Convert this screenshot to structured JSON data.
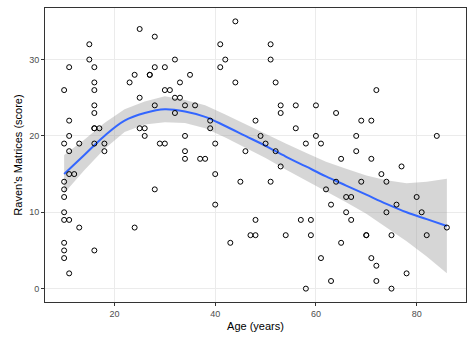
{
  "chart_data": {
    "type": "scatter",
    "x_label": "Age (years)",
    "y_label": "Raven's Matrices (score)",
    "x": [
      10,
      10,
      10,
      10,
      10,
      10,
      10,
      10,
      10,
      10,
      11,
      11,
      11,
      11,
      11,
      11,
      12,
      11,
      13,
      13,
      15,
      15,
      16,
      16,
      16,
      16,
      16,
      16,
      16,
      16,
      16,
      17,
      18,
      18,
      23,
      24,
      24,
      25,
      25,
      25,
      26,
      26,
      27,
      27,
      28,
      28,
      28,
      28,
      29,
      30,
      30,
      30,
      31,
      32,
      32,
      32,
      33,
      33,
      34,
      34,
      34,
      34,
      35,
      36,
      37,
      38,
      39,
      39,
      40,
      40,
      40,
      41,
      41,
      42,
      43,
      44,
      44,
      45,
      46,
      47,
      48,
      48,
      48,
      49,
      50,
      51,
      51,
      51,
      52,
      52,
      53,
      53,
      53,
      54,
      56,
      56,
      57,
      58,
      58,
      59,
      59,
      60,
      60,
      61,
      61,
      62,
      63,
      63,
      64,
      64,
      65,
      65,
      66,
      66,
      67,
      67,
      68,
      68,
      69,
      69,
      70,
      70,
      71,
      71,
      71,
      72,
      72,
      72,
      73,
      74,
      74,
      75,
      75,
      76,
      77,
      78,
      80,
      81,
      82,
      84,
      86
    ],
    "values": [
      26,
      19,
      14,
      13,
      12,
      10,
      9,
      6,
      5,
      4,
      29,
      22,
      20,
      18,
      15,
      2,
      15,
      9,
      19,
      8,
      32,
      30,
      29,
      27,
      26,
      24,
      23,
      21,
      21,
      19,
      5,
      21,
      19,
      18,
      27,
      28,
      8,
      34,
      21,
      25,
      21,
      20,
      28,
      28,
      33,
      29,
      24,
      13,
      19,
      29,
      26,
      19,
      26,
      30,
      25,
      23,
      25,
      27,
      18,
      17,
      20,
      24,
      28,
      24,
      17,
      17,
      22,
      21,
      11,
      19,
      15,
      29,
      32,
      30,
      6,
      35,
      27,
      14,
      18,
      7,
      9,
      22,
      7,
      20,
      19,
      32,
      30,
      14,
      27,
      18,
      16,
      23,
      24,
      7,
      21,
      24,
      9,
      0,
      19,
      9,
      7,
      24,
      20,
      19,
      4,
      13,
      11,
      1,
      14,
      23,
      6,
      17,
      12,
      10,
      12,
      9,
      20,
      18,
      22,
      14,
      7,
      7,
      22,
      17,
      4,
      3,
      1,
      26,
      15,
      14,
      10,
      0,
      7,
      11,
      16,
      2,
      12,
      10,
      7,
      20,
      8
    ],
    "marker": "open circle",
    "fit": {
      "x": [
        10,
        14,
        18,
        22,
        26,
        30,
        34,
        38,
        42,
        46,
        50,
        54,
        58,
        62,
        66,
        70,
        74,
        78,
        82,
        86
      ],
      "values": [
        15,
        17.5,
        20,
        22,
        23,
        23.5,
        23.2,
        22.5,
        21.3,
        20,
        18.7,
        17.3,
        16,
        14.7,
        13.5,
        12.3,
        11.1,
        10,
        9.1,
        8.2
      ],
      "lower": [
        12.5,
        15.5,
        18.3,
        20.5,
        21.5,
        21.8,
        21.7,
        21,
        19.8,
        18.5,
        17.1,
        15.6,
        14.2,
        12.8,
        11.3,
        9.8,
        8,
        6.2,
        4.2,
        2
      ],
      "upper": [
        17.5,
        19.5,
        21.7,
        23.5,
        24.5,
        25.2,
        24.7,
        24,
        22.8,
        21.5,
        20.3,
        19,
        17.8,
        16.6,
        15.7,
        14.8,
        14.2,
        13.8,
        14,
        14.4
      ],
      "color": "#3366ff"
    },
    "xlim": [
      6.2,
      89.8
    ],
    "ylim": [
      -1.75,
      36.75
    ],
    "xticks": [
      20,
      40,
      60,
      80
    ],
    "yticks": [
      0,
      10,
      20,
      30
    ],
    "grid": true
  }
}
